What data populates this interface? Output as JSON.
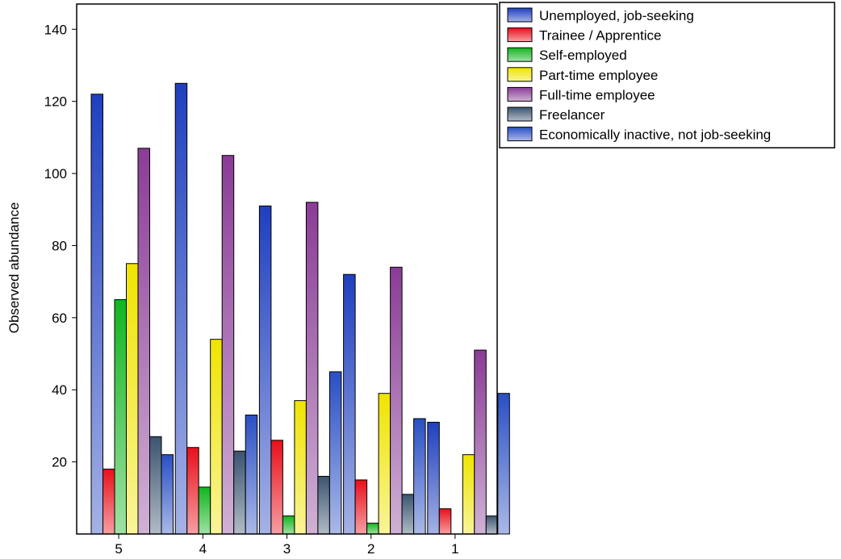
{
  "chart_data": {
    "type": "bar",
    "title": "",
    "xlabel": "",
    "ylabel": "Observed abundance",
    "ylim": [
      0,
      147
    ],
    "yticks": [
      20,
      40,
      60,
      80,
      100,
      120,
      140
    ],
    "categories": [
      "5",
      "4",
      "3",
      "2",
      "1"
    ],
    "grid": false,
    "legend_position": "top-right",
    "series": [
      {
        "name": "Unemployed, job-seeking",
        "color": "#1f3fbf",
        "values": [
          122,
          125,
          91,
          72,
          31
        ]
      },
      {
        "name": "Trainee / Apprentice",
        "color": "#e8101a",
        "values": [
          18,
          24,
          26,
          15,
          7
        ]
      },
      {
        "name": "Self-employed",
        "color": "#12b51f",
        "values": [
          65,
          13,
          5,
          3,
          0
        ]
      },
      {
        "name": "Part-time employee",
        "color": "#f0e400",
        "values": [
          75,
          54,
          37,
          39,
          22
        ]
      },
      {
        "name": "Full-time employee",
        "color": "#8a3c96",
        "values": [
          107,
          105,
          92,
          74,
          51
        ]
      },
      {
        "name": "Freelancer",
        "color": "#3b5470",
        "values": [
          27,
          23,
          16,
          11,
          5
        ]
      },
      {
        "name": "Economically inactive, not job-seeking",
        "color": "#2a4fc4",
        "values": [
          22,
          33,
          45,
          32,
          39
        ]
      }
    ]
  }
}
